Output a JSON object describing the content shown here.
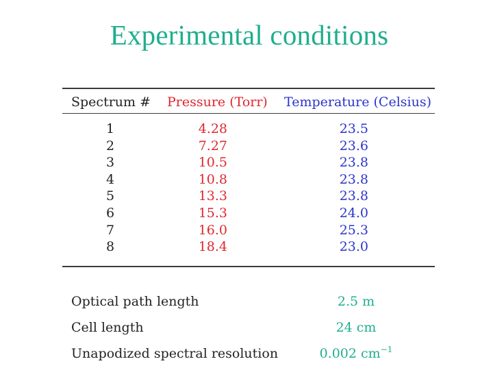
{
  "slide": {
    "title": "Experimental conditions"
  },
  "table": {
    "headers": {
      "spectrum": "Spectrum #",
      "pressure": "Pressure (Torr)",
      "temperature": "Temperature (Celsius)"
    },
    "rows": [
      {
        "spectrum": "1",
        "pressure": "4.28",
        "temperature": "23.5"
      },
      {
        "spectrum": "2",
        "pressure": "7.27",
        "temperature": "23.6"
      },
      {
        "spectrum": "3",
        "pressure": "10.5",
        "temperature": "23.8"
      },
      {
        "spectrum": "4",
        "pressure": "10.8",
        "temperature": "23.8"
      },
      {
        "spectrum": "5",
        "pressure": "13.3",
        "temperature": "23.8"
      },
      {
        "spectrum": "6",
        "pressure": "15.3",
        "temperature": "24.0"
      },
      {
        "spectrum": "7",
        "pressure": "16.0",
        "temperature": "25.3"
      },
      {
        "spectrum": "8",
        "pressure": "18.4",
        "temperature": "23.0"
      }
    ]
  },
  "parameters": [
    {
      "label": "Optical path length",
      "value": "2.5 m"
    },
    {
      "label": "Cell length",
      "value": "24 cm"
    },
    {
      "label": "Unapodized spectral resolution",
      "value": "0.002 cm",
      "value_superscript": "−1"
    }
  ],
  "colors": {
    "title": "#1fae8e",
    "pressure": "#e0262e",
    "temperature": "#2b34c9",
    "parameter_values": "#1fae8e",
    "text": "#222222"
  }
}
